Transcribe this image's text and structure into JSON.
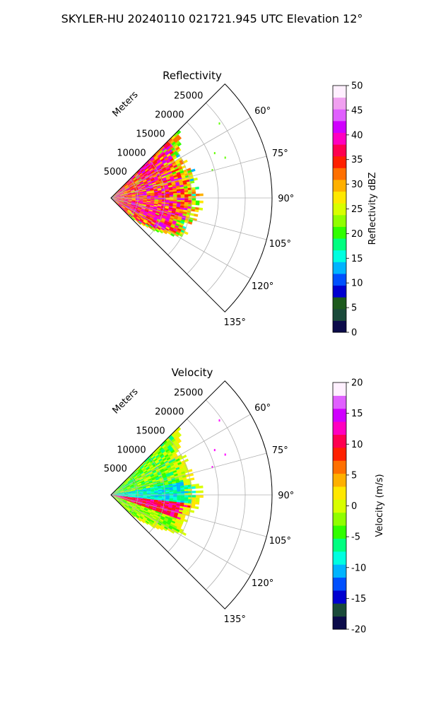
{
  "figure_title": "SKYLER-HU  20240110  021721.945 UTC Elevation 12°",
  "panels": [
    {
      "title": "Reflectivity",
      "range_label": "Meters",
      "range_ticks": [
        "5000",
        "10000",
        "15000",
        "20000",
        "25000"
      ],
      "angle_ticks": [
        "60°",
        "75°",
        "90°",
        "105°",
        "120°",
        "135°"
      ],
      "colorbar": {
        "label": "Reflectivity dBZ",
        "min": 0,
        "max": 50,
        "ticks": [
          "0",
          "5",
          "10",
          "15",
          "20",
          "25",
          "30",
          "35",
          "40",
          "45",
          "50"
        ],
        "stops": [
          "#0b0b4a",
          "#1a4a3a",
          "#1d5a1d",
          "#0000d0",
          "#0050ff",
          "#00b4ff",
          "#00ffe0",
          "#00ff80",
          "#30ff00",
          "#90ff00",
          "#d8ff00",
          "#ffe800",
          "#ffb000",
          "#ff7000",
          "#ff2000",
          "#ff0050",
          "#ff00c0",
          "#d000ff",
          "#e060ff",
          "#f0a0f0",
          "#fff0ff"
        ]
      }
    },
    {
      "title": "Velocity",
      "range_label": "Meters",
      "range_ticks": [
        "5000",
        "10000",
        "15000",
        "20000",
        "25000"
      ],
      "angle_ticks": [
        "60°",
        "75°",
        "90°",
        "105°",
        "120°",
        "135°"
      ],
      "colorbar": {
        "label": "Velocity (m/s)",
        "min": -20,
        "max": 20,
        "ticks": [
          "-20",
          "-15",
          "-10",
          "-5",
          "0",
          "5",
          "10",
          "15",
          "20"
        ],
        "stops": [
          "#0b0b4a",
          "#1a4a3a",
          "#0000d0",
          "#0050ff",
          "#00b4ff",
          "#00ffe0",
          "#00ff80",
          "#30ff00",
          "#90ff00",
          "#d8ff00",
          "#ffe800",
          "#ffb000",
          "#ff7000",
          "#ff2000",
          "#ff0050",
          "#ff00c0",
          "#d000ff",
          "#e060ff",
          "#fff0ff"
        ]
      }
    }
  ],
  "chart_data": [
    {
      "type": "heatmap",
      "subtype": "polar radar sector (PPI)",
      "title": "Reflectivity",
      "variable": "Reflectivity dBZ",
      "range_axis": {
        "label": "Meters",
        "ticks": [
          5000,
          10000,
          15000,
          20000,
          25000
        ]
      },
      "azimuth_axis": {
        "ticks_deg": [
          60,
          75,
          90,
          105,
          120,
          135
        ],
        "range_deg": [
          45,
          135
        ]
      },
      "value_range": [
        0,
        50
      ],
      "grid": true,
      "echo_extent_m": 17000,
      "dominant_values": [
        20,
        35
      ]
    },
    {
      "type": "heatmap",
      "subtype": "polar radar sector (PPI)",
      "title": "Velocity",
      "variable": "Velocity (m/s)",
      "range_axis": {
        "label": "Meters",
        "ticks": [
          5000,
          10000,
          15000,
          20000,
          25000
        ]
      },
      "azimuth_axis": {
        "ticks_deg": [
          60,
          75,
          90,
          105,
          120,
          135
        ],
        "range_deg": [
          45,
          135
        ]
      },
      "value_range": [
        -20,
        20
      ],
      "grid": true,
      "echo_extent_m": 17000,
      "dominant_values": [
        -10,
        10
      ]
    }
  ]
}
